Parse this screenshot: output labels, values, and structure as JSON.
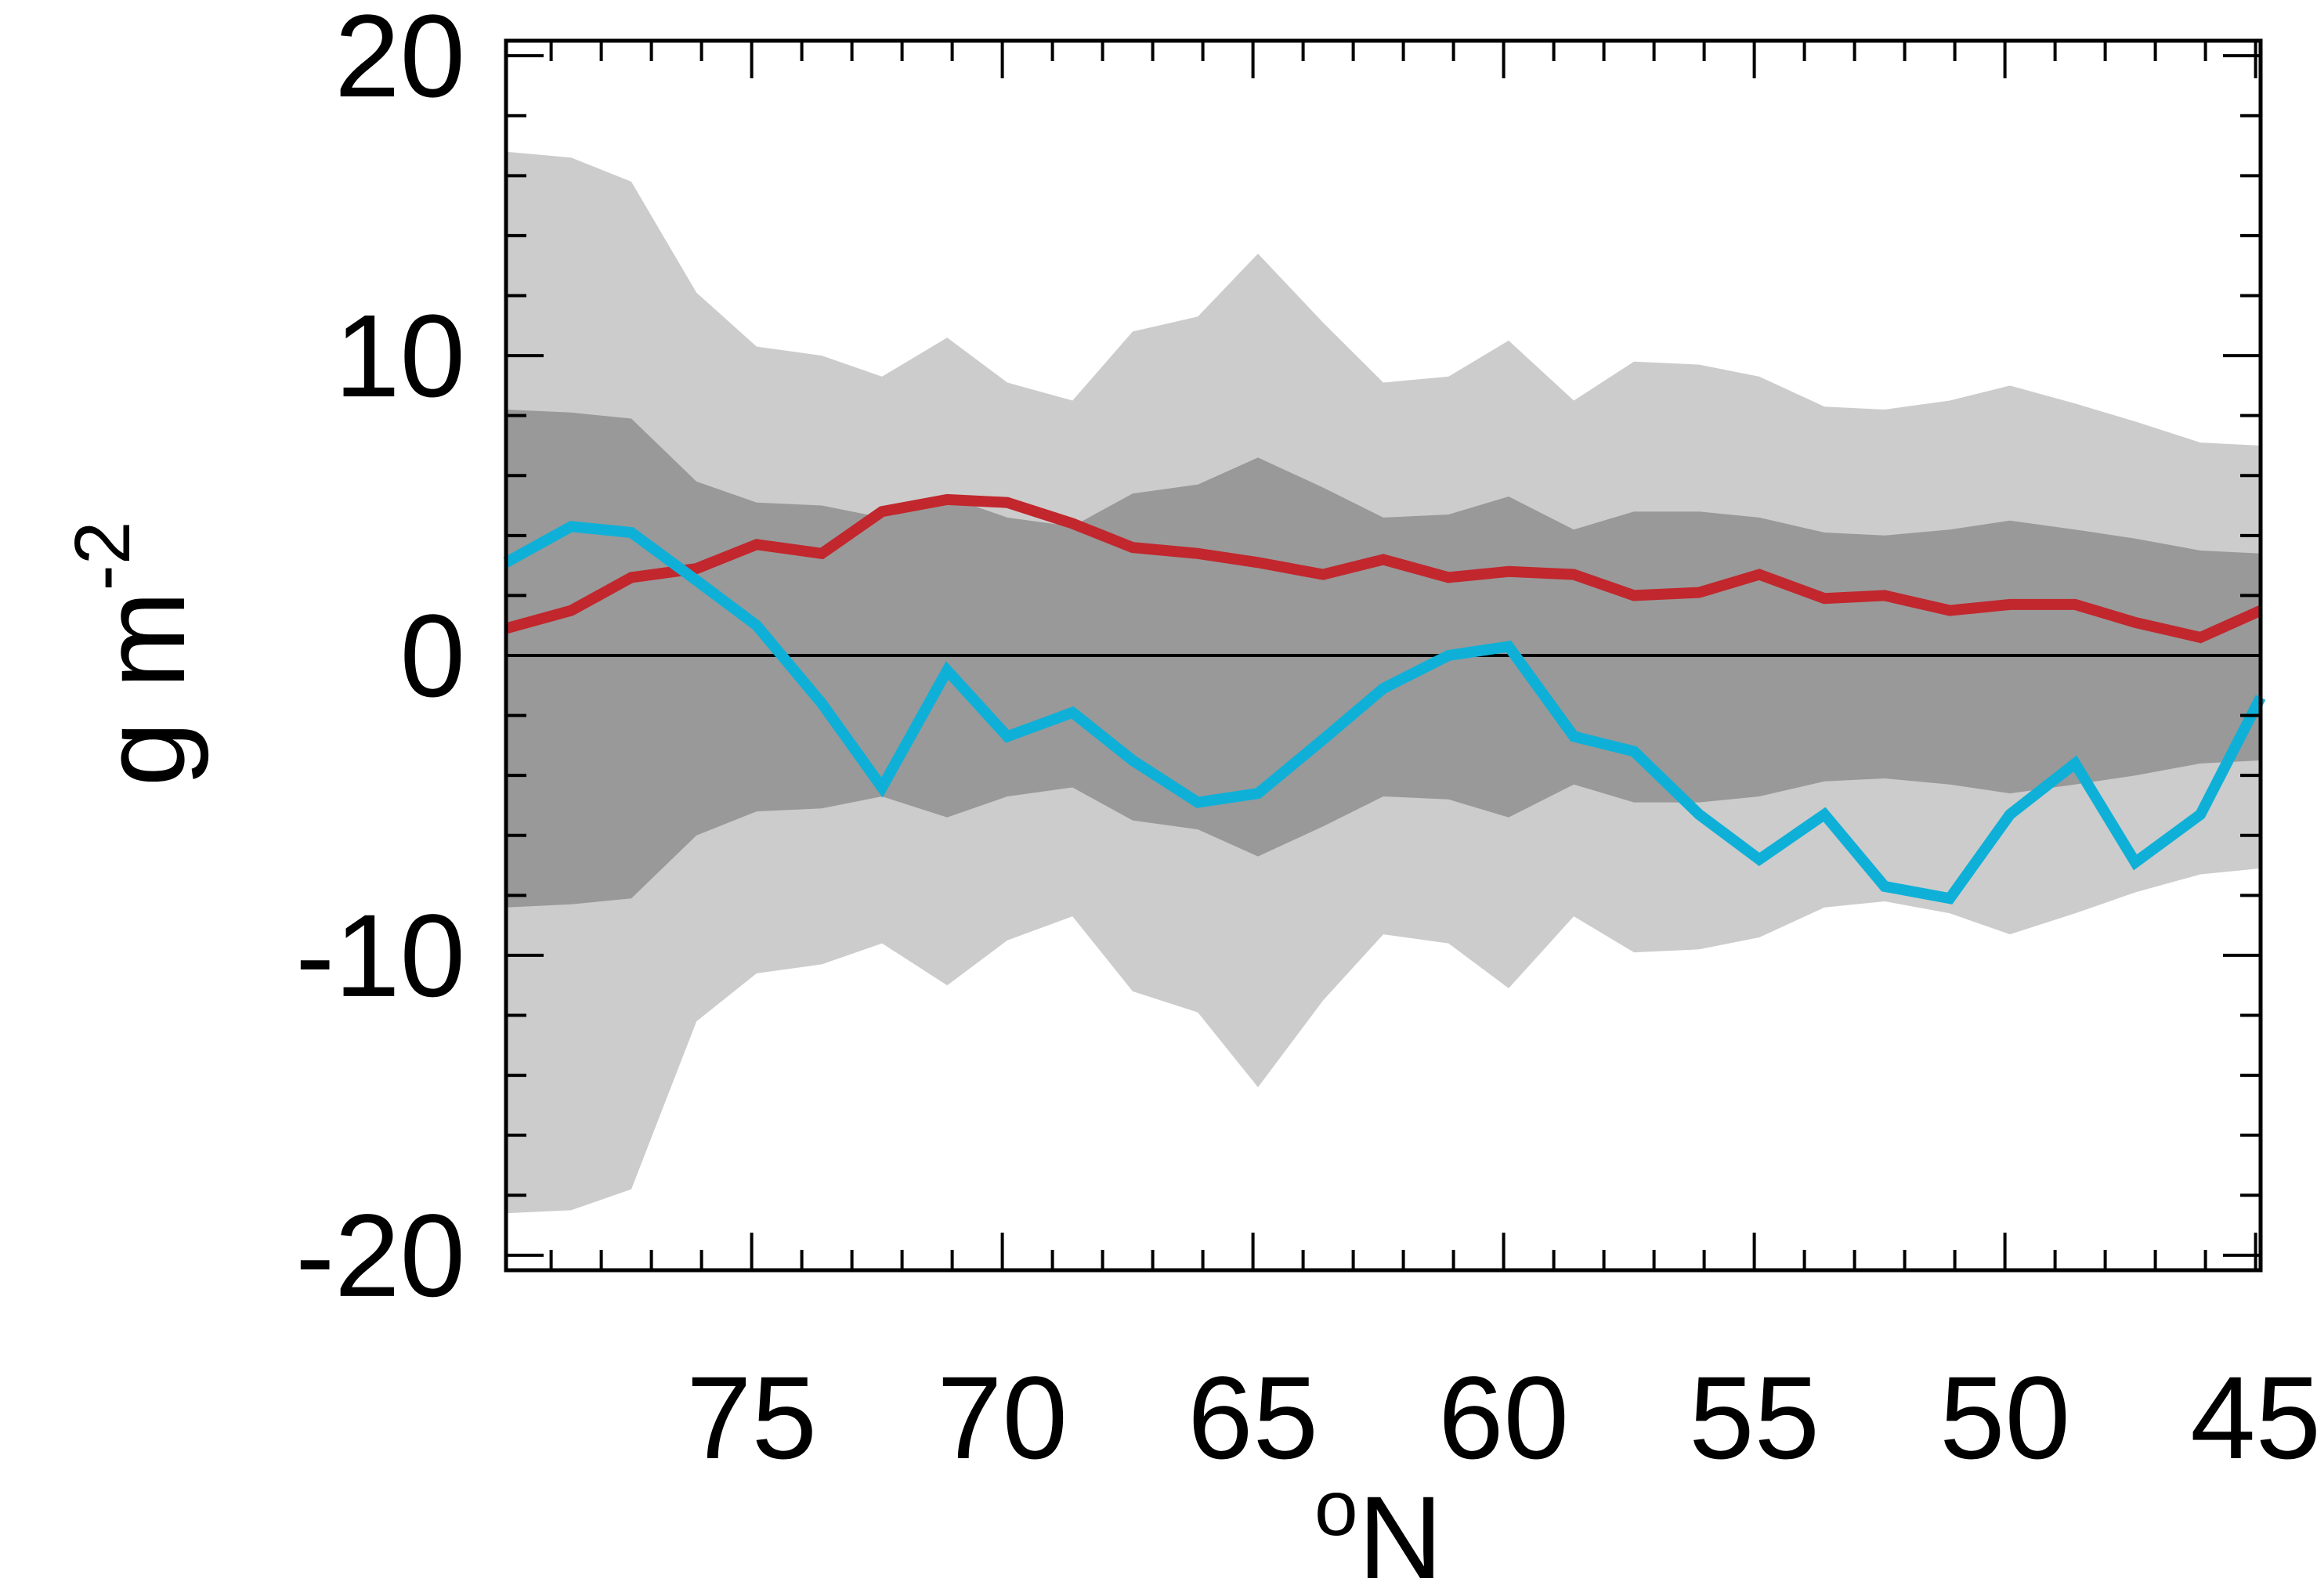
{
  "chart_data": {
    "type": "line",
    "xlabel": "°N",
    "xlabel_parts": {
      "degree": "o",
      "unit": "N"
    },
    "ylabel": "g m-2",
    "ylabel_parts": {
      "base": "g m",
      "exponent": "-2"
    },
    "xlim": [
      79.9,
      44.9
    ],
    "ylim": [
      -20.5,
      20.5
    ],
    "x_ticks": [
      75,
      70,
      65,
      60,
      55,
      50,
      45
    ],
    "y_ticks": [
      20,
      10,
      0,
      -10,
      -20
    ],
    "x_tick_labels": [
      "75",
      "70",
      "65",
      "60",
      "55",
      "50",
      "45"
    ],
    "y_tick_labels": [
      "20",
      "10",
      "0",
      "-10",
      "-20"
    ],
    "x": [
      79.9,
      78.6,
      77.4,
      76.1,
      74.9,
      73.6,
      72.4,
      71.1,
      69.9,
      68.6,
      67.4,
      66.1,
      64.9,
      63.6,
      62.4,
      61.1,
      59.9,
      58.6,
      57.4,
      56.1,
      54.9,
      53.6,
      52.4,
      51.1,
      49.9,
      48.6,
      47.4,
      46.1,
      44.9
    ],
    "bands": [
      {
        "lower": [
          -18.6,
          -18.5,
          -17.8,
          -12.2,
          -10.6,
          -10.3,
          -9.6,
          -11.0,
          -9.5,
          -8.7,
          -11.2,
          -11.9,
          -14.4,
          -11.5,
          -9.3,
          -9.6,
          -11.1,
          -8.7,
          -9.9,
          -9.8,
          -9.4,
          -8.4,
          -8.2,
          -8.6,
          -9.3,
          -8.6,
          -7.9,
          -7.3,
          -7.1
        ],
        "upper": [
          16.8,
          16.6,
          15.8,
          12.1,
          10.3,
          10.0,
          9.3,
          10.6,
          9.1,
          8.5,
          10.8,
          11.3,
          13.4,
          11.1,
          9.1,
          9.3,
          10.5,
          8.5,
          9.8,
          9.7,
          9.3,
          8.3,
          8.2,
          8.5,
          9.0,
          8.4,
          7.8,
          7.1,
          7.0
        ],
        "color": "#cccccc"
      },
      {
        "lower": [
          -8.4,
          -8.3,
          -8.1,
          -6.0,
          -5.2,
          -5.1,
          -4.7,
          -5.4,
          -4.7,
          -4.4,
          -5.5,
          -5.8,
          -6.7,
          -5.7,
          -4.7,
          -4.8,
          -5.4,
          -4.3,
          -4.9,
          -4.9,
          -4.7,
          -4.2,
          -4.1,
          -4.3,
          -4.6,
          -4.3,
          -4.0,
          -3.6,
          -3.5
        ],
        "upper": [
          8.2,
          8.1,
          7.9,
          5.8,
          5.1,
          5.0,
          4.6,
          5.3,
          4.6,
          4.3,
          5.4,
          5.7,
          6.6,
          5.6,
          4.6,
          4.7,
          5.3,
          4.2,
          4.8,
          4.8,
          4.6,
          4.1,
          4.0,
          4.2,
          4.5,
          4.2,
          3.9,
          3.5,
          3.4
        ],
        "color": "#999999"
      }
    ],
    "series": [
      {
        "color": "#c1272d",
        "values": [
          0.9,
          1.5,
          2.6,
          2.9,
          3.7,
          3.4,
          4.8,
          5.2,
          5.1,
          4.4,
          3.6,
          3.4,
          3.1,
          2.7,
          3.2,
          2.6,
          2.8,
          2.7,
          2.0,
          2.1,
          2.7,
          1.9,
          2.0,
          1.5,
          1.7,
          1.7,
          1.1,
          0.6,
          1.5
        ]
      },
      {
        "color": "#0fb0d8",
        "values": [
          3.1,
          4.3,
          4.1,
          2.5,
          1.0,
          -1.6,
          -4.4,
          -0.5,
          -2.7,
          -1.9,
          -3.5,
          -4.9,
          -4.6,
          -2.8,
          -1.1,
          0.0,
          0.3,
          -2.7,
          -3.2,
          -5.3,
          -6.8,
          -5.3,
          -7.7,
          -8.1,
          -5.3,
          -3.6,
          -6.9,
          -5.3,
          -1.4
        ]
      }
    ],
    "zero_line": true
  }
}
